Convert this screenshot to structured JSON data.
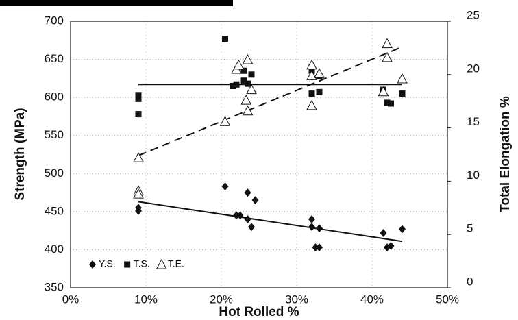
{
  "chart_data": {
    "type": "scatter",
    "xlabel": "Hot Rolled %",
    "ylabel": "Strength (MPa)",
    "y2label": "Total Elongation %",
    "xlim": [
      0,
      50
    ],
    "ylim": [
      350,
      700
    ],
    "y2lim": [
      0,
      25
    ],
    "xticks": [
      {
        "value": 0,
        "label": "0%"
      },
      {
        "value": 10,
        "label": "10%"
      },
      {
        "value": 20,
        "label": "20%"
      },
      {
        "value": 30,
        "label": "30%"
      },
      {
        "value": 40,
        "label": "40%"
      },
      {
        "value": 50,
        "label": "50%"
      }
    ],
    "yticks": [
      350,
      400,
      450,
      500,
      550,
      600,
      650,
      700
    ],
    "y2ticks": [
      0,
      5,
      10,
      15,
      20,
      25
    ],
    "grid": true,
    "legend": "lower left",
    "series": [
      {
        "name": "Y.S.",
        "marker": "diamond",
        "color": "#111111",
        "line": "solid",
        "x": [
          9,
          9,
          20.5,
          22,
          22.5,
          23.5,
          23.5,
          24,
          24.5,
          32,
          32,
          32.5,
          33,
          33,
          41.5,
          42,
          42.5,
          44
        ],
        "values": [
          455,
          451,
          483,
          445,
          445,
          440,
          475,
          430,
          465,
          440,
          430,
          403,
          428,
          403,
          422,
          403,
          405,
          427
        ],
        "trend": {
          "x": [
            9,
            44
          ],
          "values": [
            463,
            411
          ]
        }
      },
      {
        "name": "T.S.",
        "marker": "square",
        "color": "#111111",
        "line": "solid",
        "x": [
          9,
          9,
          9,
          20.5,
          21.5,
          22,
          23,
          23,
          23.5,
          24,
          32,
          32,
          32,
          33,
          33,
          41.5,
          42,
          42.5,
          44
        ],
        "values": [
          578,
          598,
          603,
          677,
          615,
          617,
          622,
          635,
          618,
          630,
          605,
          635,
          640,
          607,
          628,
          610,
          593,
          592,
          605
        ],
        "trend": {
          "x": [
            9,
            44
          ],
          "values": [
            617,
            617
          ]
        }
      },
      {
        "name": "T.E.",
        "marker": "triangle",
        "color": "#111111",
        "line": "dashed",
        "axis": "y2",
        "x": [
          9,
          9,
          9,
          20.5,
          22,
          22.3,
          23.5,
          23.3,
          23.5,
          24,
          32,
          32,
          32,
          33,
          41.5,
          42,
          42,
          44
        ],
        "values": [
          12.2,
          9.1,
          8.8,
          15.6,
          20.5,
          20.9,
          21.4,
          17.6,
          16.6,
          18.6,
          20.9,
          17.1,
          19.9,
          20.1,
          18.4,
          21.6,
          22.9,
          19.6
        ],
        "trend": {
          "x": [
            9,
            44
          ],
          "values": [
            12.4,
            22.6
          ]
        }
      }
    ]
  }
}
